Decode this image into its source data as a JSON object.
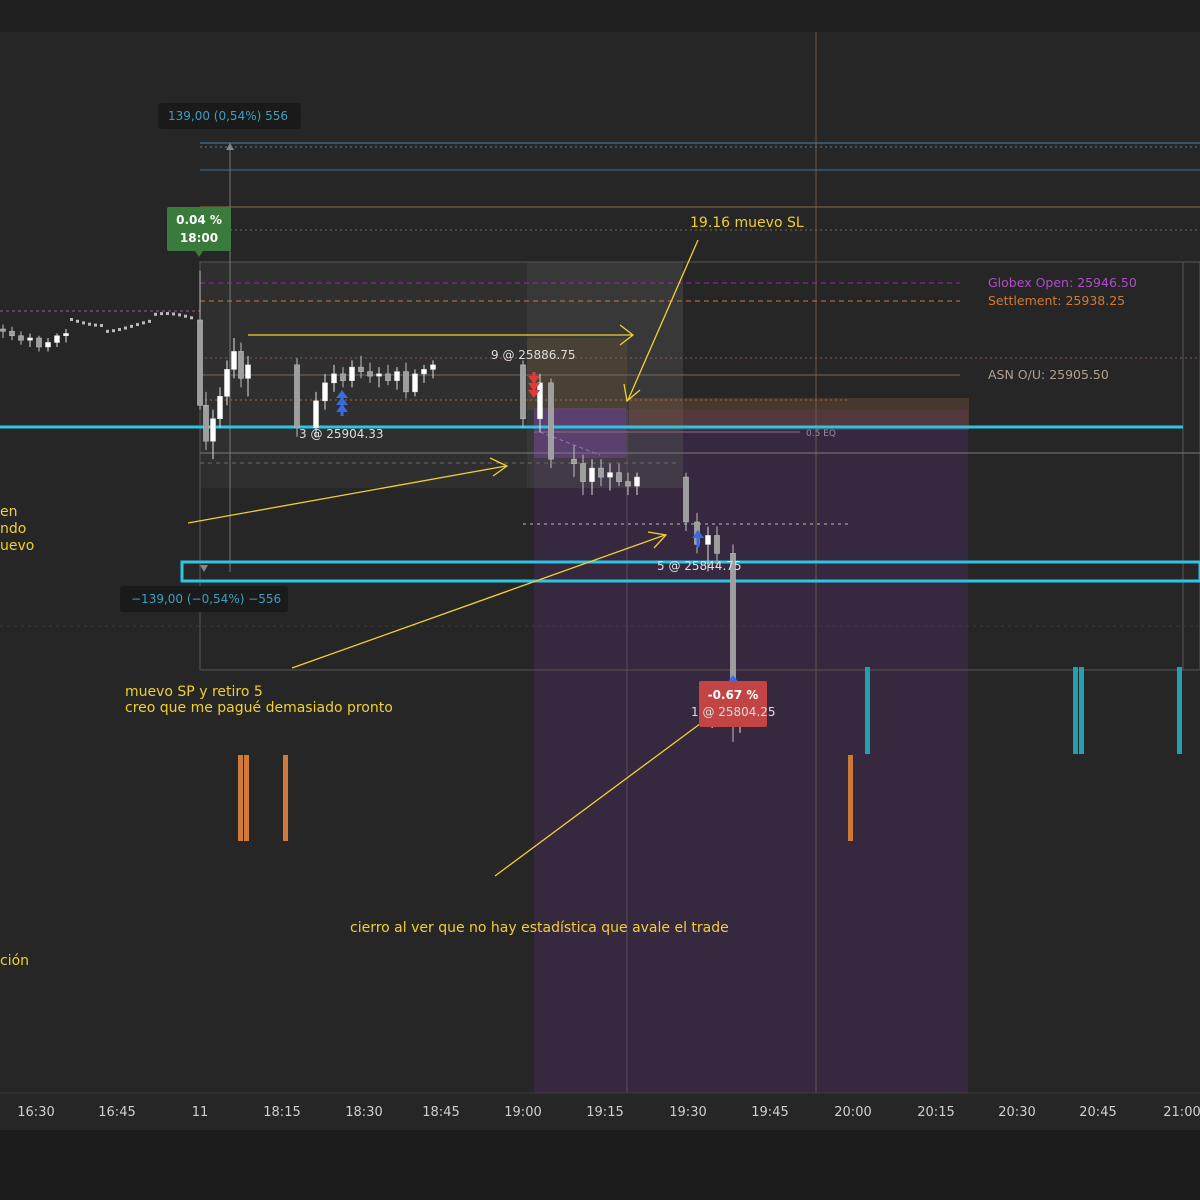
{
  "chart_data": {
    "type": "candlestick",
    "x_ticks": [
      "16:30",
      "16:45",
      "11",
      "18:15",
      "18:30",
      "18:45",
      "19:00",
      "19:15",
      "19:30",
      "19:45",
      "20:00",
      "20:15",
      "20:30",
      "20:45",
      "21:00"
    ],
    "price_levels": [
      {
        "label": "Globex Open: 25946.50",
        "price": 25946.5,
        "color": "#9c27b0",
        "style": "dashed"
      },
      {
        "label": "Settlement: 25938.25",
        "price": 25938.25,
        "color": "#d07a3a",
        "style": "dashed"
      },
      {
        "label": "ASN O/U: 25905.50",
        "price": 25905.5,
        "color": "#8a7a6a",
        "style": "solid"
      },
      {
        "label": "0.5 EQ",
        "price": 25879,
        "color": "#8a6a8a",
        "style": "solid"
      }
    ],
    "measure_up": "139,00 (0,54%) 556",
    "measure_down": "−139,00 (−0,54%) −556",
    "session_badge": {
      "pct": "0.04 %",
      "time": "18:00",
      "color": "#3a7a3a"
    },
    "close_badge": {
      "pct": "-0.67 %",
      "color": "#c24444"
    },
    "fills": [
      {
        "label": "9 @ 25886.75",
        "price": 25886.75,
        "side": "sell"
      },
      {
        "label": "3 @ 25904.33",
        "price": 25904.33,
        "side": "buy"
      },
      {
        "label": "5 @ 25844.75",
        "price": 25844.75,
        "side": "buy"
      },
      {
        "label": "1 @ 25804.25",
        "price": 25804.25,
        "side": "buy"
      }
    ],
    "annotations": [
      {
        "text": "19.16 muevo SL"
      },
      {
        "text": "muevo SP y retiro 5"
      },
      {
        "text": "creo que me pagué demasiado pronto"
      },
      {
        "text": "cierro al ver que no hay estadística que avale el trade"
      },
      {
        "text": "en"
      },
      {
        "text": "ndo"
      },
      {
        "text": "uevo"
      },
      {
        "text": "ción"
      }
    ],
    "candles": [
      {
        "t": 0,
        "o": 25926,
        "h": 25928,
        "l": 25922,
        "c": 25925
      },
      {
        "t": 1,
        "o": 25925,
        "h": 25927,
        "l": 25921,
        "c": 25923
      },
      {
        "t": 2,
        "o": 25923,
        "h": 25925,
        "l": 25919,
        "c": 25921
      },
      {
        "t": 3,
        "o": 25921,
        "h": 25924,
        "l": 25918,
        "c": 25922
      },
      {
        "t": 4,
        "o": 25922,
        "h": 25923,
        "l": 25916,
        "c": 25918
      },
      {
        "t": 5,
        "o": 25918,
        "h": 25922,
        "l": 25916,
        "c": 25920
      },
      {
        "t": 6,
        "o": 25920,
        "h": 25924,
        "l": 25918,
        "c": 25923
      },
      {
        "t": 7,
        "o": 25923,
        "h": 25926,
        "l": 25920,
        "c": 25924
      },
      {
        "t": 8,
        "o": 25930,
        "h": 25952,
        "l": 25890,
        "c": 25892
      },
      {
        "t": 9,
        "o": 25892,
        "h": 25898,
        "l": 25872,
        "c": 25876
      },
      {
        "t": 10,
        "o": 25876,
        "h": 25890,
        "l": 25868,
        "c": 25886
      },
      {
        "t": 11,
        "o": 25886,
        "h": 25900,
        "l": 25882,
        "c": 25896
      },
      {
        "t": 12,
        "o": 25896,
        "h": 25912,
        "l": 25892,
        "c": 25908
      },
      {
        "t": 13,
        "o": 25908,
        "h": 25922,
        "l": 25904,
        "c": 25916
      },
      {
        "t": 14,
        "o": 25916,
        "h": 25920,
        "l": 25900,
        "c": 25904
      },
      {
        "t": 15,
        "o": 25904,
        "h": 25914,
        "l": 25896,
        "c": 25910
      },
      {
        "t": 16,
        "o": 25910,
        "h": 25913,
        "l": 25878,
        "c": 25882
      },
      {
        "t": 17,
        "o": 25882,
        "h": 25898,
        "l": 25878,
        "c": 25894
      },
      {
        "t": 18,
        "o": 25894,
        "h": 25906,
        "l": 25890,
        "c": 25902
      },
      {
        "t": 19,
        "o": 25902,
        "h": 25910,
        "l": 25898,
        "c": 25906
      },
      {
        "t": 20,
        "o": 25906,
        "h": 25909,
        "l": 25900,
        "c": 25903
      },
      {
        "t": 21,
        "o": 25903,
        "h": 25912,
        "l": 25900,
        "c": 25909
      },
      {
        "t": 22,
        "o": 25909,
        "h": 25914,
        "l": 25904,
        "c": 25907
      },
      {
        "t": 23,
        "o": 25907,
        "h": 25911,
        "l": 25902,
        "c": 25905
      },
      {
        "t": 24,
        "o": 25905,
        "h": 25909,
        "l": 25900,
        "c": 25906
      },
      {
        "t": 25,
        "o": 25906,
        "h": 25910,
        "l": 25901,
        "c": 25903
      },
      {
        "t": 26,
        "o": 25903,
        "h": 25909,
        "l": 25899,
        "c": 25907
      },
      {
        "t": 27,
        "o": 25907,
        "h": 25911,
        "l": 25895,
        "c": 25898
      },
      {
        "t": 28,
        "o": 25898,
        "h": 25908,
        "l": 25896,
        "c": 25906
      },
      {
        "t": 29,
        "o": 25906,
        "h": 25910,
        "l": 25902,
        "c": 25908
      },
      {
        "t": 30,
        "o": 25908,
        "h": 25912,
        "l": 25904,
        "c": 25910
      },
      {
        "t": 31,
        "o": 25910,
        "h": 25912,
        "l": 25882,
        "c": 25886
      },
      {
        "t": 32,
        "o": 25886,
        "h": 25906,
        "l": 25880,
        "c": 25902
      },
      {
        "t": 33,
        "o": 25902,
        "h": 25904,
        "l": 25864,
        "c": 25868
      },
      {
        "t": 34,
        "o": 25868,
        "h": 25874,
        "l": 25860,
        "c": 25866
      },
      {
        "t": 35,
        "o": 25866,
        "h": 25870,
        "l": 25852,
        "c": 25858
      },
      {
        "t": 36,
        "o": 25858,
        "h": 25868,
        "l": 25852,
        "c": 25864
      },
      {
        "t": 37,
        "o": 25864,
        "h": 25868,
        "l": 25856,
        "c": 25860
      },
      {
        "t": 38,
        "o": 25860,
        "h": 25866,
        "l": 25854,
        "c": 25862
      },
      {
        "t": 39,
        "o": 25862,
        "h": 25866,
        "l": 25856,
        "c": 25858
      },
      {
        "t": 40,
        "o": 25858,
        "h": 25862,
        "l": 25852,
        "c": 25856
      },
      {
        "t": 41,
        "o": 25856,
        "h": 25862,
        "l": 25852,
        "c": 25860
      },
      {
        "t": 42,
        "o": 25860,
        "h": 25862,
        "l": 25836,
        "c": 25840
      },
      {
        "t": 43,
        "o": 25840,
        "h": 25844,
        "l": 25826,
        "c": 25830
      },
      {
        "t": 44,
        "o": 25830,
        "h": 25838,
        "l": 25818,
        "c": 25834
      },
      {
        "t": 45,
        "o": 25834,
        "h": 25838,
        "l": 25820,
        "c": 25826
      },
      {
        "t": 46,
        "o": 25826,
        "h": 25830,
        "l": 25742,
        "c": 25750
      },
      {
        "t": 47,
        "o": 25750,
        "h": 25762,
        "l": 25746,
        "c": 25758
      },
      {
        "t": 48,
        "o": 25758,
        "h": 25766,
        "l": 25752,
        "c": 25762
      }
    ]
  }
}
